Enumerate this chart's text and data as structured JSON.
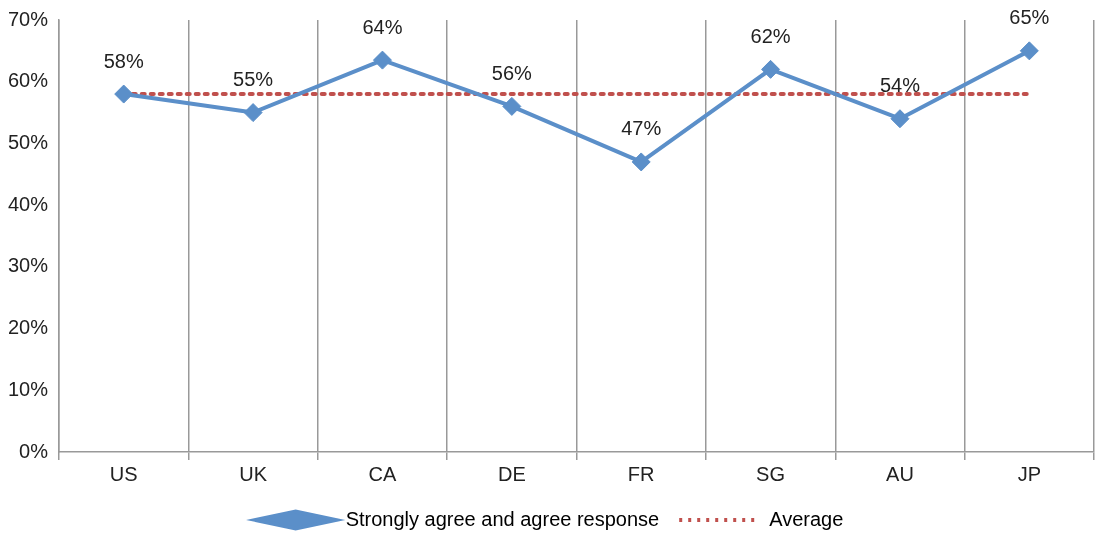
{
  "chart_data": {
    "type": "line",
    "categories": [
      "US",
      "UK",
      "CA",
      "DE",
      "FR",
      "SG",
      "AU",
      "JP"
    ],
    "series": [
      {
        "name": "Strongly agree and agree response",
        "color": "#5b8fc9",
        "values": [
          58,
          55,
          63.5,
          56,
          47,
          62,
          54,
          65
        ],
        "value_labels": [
          "58%",
          "55%",
          "64%",
          "56%",
          "47%",
          "62%",
          "54%",
          "65%"
        ],
        "marker": "diamond",
        "line_style": "solid"
      },
      {
        "name": "Average",
        "color": "#c0504d",
        "values": [
          58,
          58,
          58,
          58,
          58,
          58,
          58,
          58
        ],
        "marker": "none",
        "line_style": "dotted"
      }
    ],
    "ylim": [
      0,
      70
    ],
    "yticks": [
      {
        "value": 0,
        "label": "0%"
      },
      {
        "value": 10,
        "label": "10%"
      },
      {
        "value": 20,
        "label": "20%"
      },
      {
        "value": 30,
        "label": "30%"
      },
      {
        "value": 40,
        "label": "40%"
      },
      {
        "value": 50,
        "label": "50%"
      },
      {
        "value": 60,
        "label": "60%"
      },
      {
        "value": 70,
        "label": "70%"
      }
    ],
    "grid": "x",
    "legend": "bottom"
  }
}
